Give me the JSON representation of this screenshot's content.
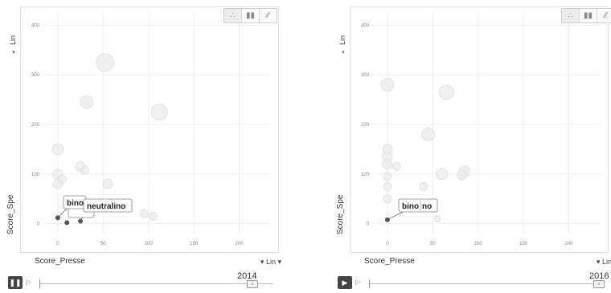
{
  "panels": [
    {
      "chart_type_icons": [
        "scatter-icon",
        "bar-icon",
        "line-icon"
      ],
      "y_axis_label": "Score_Spe",
      "y_scale": "Lin",
      "x_axis_label": "Score_Presse",
      "x_scale": "Lin",
      "year": "2014",
      "play_state": "pause",
      "tooltips": [
        "bino",
        "neutralino"
      ],
      "x_ticks": [
        "0",
        "50",
        "100",
        "150",
        "200"
      ],
      "y_ticks": [
        "0",
        "100",
        "200",
        "300",
        "400"
      ]
    },
    {
      "chart_type_icons": [
        "scatter-icon",
        "bar-icon",
        "line-icon"
      ],
      "y_axis_label": "Score_Spe",
      "y_scale": "Lin",
      "x_axis_label": "Score_Presse",
      "x_scale": "Lin",
      "year": "2016",
      "play_state": "play",
      "tooltips": [
        "bino",
        "no"
      ],
      "x_ticks": [
        "0",
        "50",
        "100",
        "150",
        "200"
      ],
      "y_ticks": [
        "0",
        "100",
        "200",
        "300",
        "400"
      ]
    }
  ],
  "chart_data": [
    {
      "type": "scatter",
      "xlabel": "Score_Presse",
      "ylabel": "Score_Spe",
      "xlim": [
        -15,
        235
      ],
      "ylim": [
        -20,
        425
      ],
      "grid": true,
      "highlighted": [
        {
          "label": "bino",
          "x": 0,
          "y": 12
        },
        {
          "label": "neutralino",
          "x": 25,
          "y": 5
        },
        {
          "label": "",
          "x": 10,
          "y": 2
        }
      ],
      "faded": [
        {
          "x": 0,
          "y": 150,
          "r": 7
        },
        {
          "x": 0,
          "y": 100,
          "r": 6
        },
        {
          "x": 0,
          "y": 80,
          "r": 6
        },
        {
          "x": 5,
          "y": 90,
          "r": 5
        },
        {
          "x": 25,
          "y": 115,
          "r": 6
        },
        {
          "x": 30,
          "y": 108,
          "r": 5
        },
        {
          "x": 32,
          "y": 245,
          "r": 8
        },
        {
          "x": 52,
          "y": 325,
          "r": 11
        },
        {
          "x": 112,
          "y": 225,
          "r": 10
        },
        {
          "x": 55,
          "y": 80,
          "r": 6
        },
        {
          "x": 95,
          "y": 20,
          "r": 5
        },
        {
          "x": 105,
          "y": 15,
          "r": 5
        },
        {
          "x": 45,
          "y": 30,
          "r": 4
        }
      ]
    },
    {
      "type": "scatter",
      "xlabel": "Score_Presse",
      "ylabel": "Score_Spe",
      "xlim": [
        -15,
        235
      ],
      "ylim": [
        -20,
        425
      ],
      "grid": true,
      "highlighted": [
        {
          "label": "bino",
          "x": 0,
          "y": 8
        }
      ],
      "faded": [
        {
          "x": 0,
          "y": 280,
          "r": 8
        },
        {
          "x": 0,
          "y": 150,
          "r": 6
        },
        {
          "x": 0,
          "y": 135,
          "r": 6
        },
        {
          "x": 0,
          "y": 120,
          "r": 6
        },
        {
          "x": 0,
          "y": 95,
          "r": 5
        },
        {
          "x": 0,
          "y": 75,
          "r": 5
        },
        {
          "x": 0,
          "y": 50,
          "r": 5
        },
        {
          "x": 10,
          "y": 115,
          "r": 5
        },
        {
          "x": 65,
          "y": 265,
          "r": 9
        },
        {
          "x": 45,
          "y": 180,
          "r": 8
        },
        {
          "x": 60,
          "y": 100,
          "r": 7
        },
        {
          "x": 85,
          "y": 105,
          "r": 7
        },
        {
          "x": 82,
          "y": 98,
          "r": 6
        },
        {
          "x": 40,
          "y": 75,
          "r": 5
        },
        {
          "x": 35,
          "y": 35,
          "r": 4
        },
        {
          "x": 55,
          "y": 10,
          "r": 4
        }
      ]
    }
  ]
}
